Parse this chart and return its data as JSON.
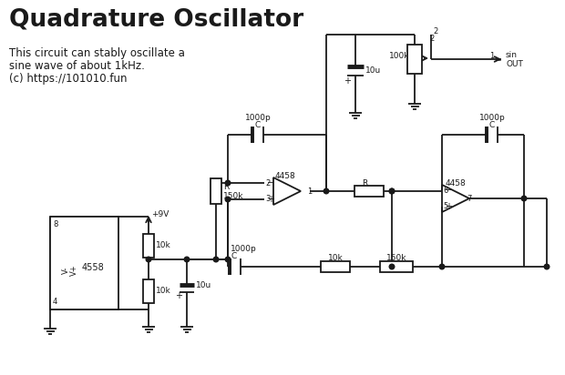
{
  "title": "Quadrature Oscillator",
  "subtitle_line1": "This circuit can stably oscillate a",
  "subtitle_line2": "sine wave of about 1kHz.",
  "subtitle_line3": "(c) https://101010.fun",
  "bg_color": "#ffffff",
  "line_color": "#1a1a1a",
  "figsize": [
    6.2,
    4.12
  ],
  "dpi": 100
}
